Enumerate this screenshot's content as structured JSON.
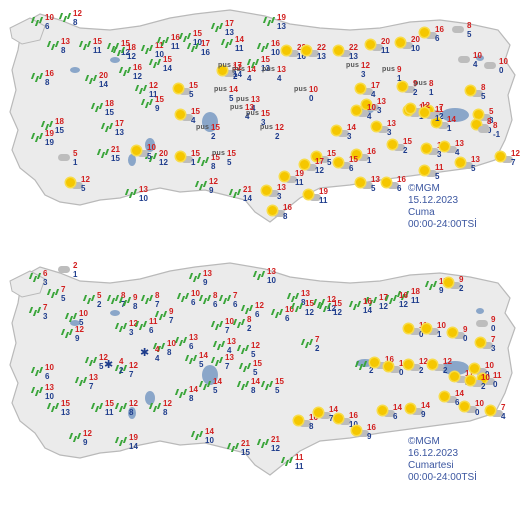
{
  "panels": [
    {
      "stamp": {
        "org": "©MGM",
        "date": "15.12.2023",
        "day": "Cuma",
        "hours": "00:00-24:00TSİ"
      }
    },
    {
      "stamp": {
        "org": "©MGM",
        "date": "16.12.2023",
        "day": "Cumartesi",
        "hours": "00:00-24:00TSİ"
      }
    }
  ],
  "legend": {
    "fog_label": "pus"
  },
  "colors": {
    "land": "#ebebeb",
    "coast": "#b9b9b9",
    "lake": "#8aa6c9",
    "high": "#d21e1e",
    "low": "#1e3c8c",
    "sun": "#f5c700",
    "rain": "#3aa53a"
  },
  "panel1": {
    "cities": [
      {
        "hi": "10",
        "lo": "6",
        "icon": "rain"
      },
      {
        "hi": "12",
        "lo": "8",
        "icon": "rain"
      },
      {
        "hi": "13",
        "lo": "8",
        "icon": "rain"
      },
      {
        "hi": "15",
        "lo": "11",
        "icon": "rain"
      },
      {
        "hi": "15",
        "lo": "12",
        "icon": "rain"
      },
      {
        "hi": "11",
        "lo": "10",
        "icon": "rain"
      },
      {
        "hi": "18",
        "lo": "12",
        "icon": "rain"
      },
      {
        "hi": "16",
        "lo": "11",
        "icon": "rain"
      },
      {
        "hi": "15",
        "lo": "10",
        "icon": "rain"
      },
      {
        "hi": "17",
        "lo": "13",
        "icon": "rain"
      },
      {
        "hi": "17",
        "lo": "16",
        "icon": "rain"
      },
      {
        "hi": "14",
        "lo": "11",
        "icon": "rain"
      },
      {
        "hi": "19",
        "lo": "13",
        "icon": "rain"
      },
      {
        "hi": "16",
        "lo": "10",
        "icon": "rain"
      },
      {
        "hi": "15",
        "lo": "13",
        "icon": "rain"
      },
      {
        "hi": "22",
        "lo": "16",
        "icon": "sun"
      },
      {
        "hi": "22",
        "lo": "13",
        "icon": "sun"
      },
      {
        "hi": "22",
        "lo": "13",
        "icon": "sun"
      },
      {
        "hi": "20",
        "lo": "11",
        "icon": "sun"
      },
      {
        "hi": "20",
        "lo": "10",
        "icon": "sun"
      },
      {
        "hi": "16",
        "lo": "6",
        "icon": "sun"
      },
      {
        "hi": "8",
        "lo": "5",
        "icon": "cloud"
      },
      {
        "hi": "10",
        "lo": "4",
        "icon": "cloud"
      },
      {
        "hi": "10",
        "lo": "0",
        "icon": "cloud"
      },
      {
        "hi": "16",
        "lo": "8",
        "icon": "rain"
      },
      {
        "hi": "20",
        "lo": "14",
        "icon": "rain"
      },
      {
        "hi": "18",
        "lo": "15",
        "icon": "rain"
      },
      {
        "hi": "16",
        "lo": "12",
        "icon": "rain"
      },
      {
        "hi": "15",
        "lo": "14",
        "icon": "rain"
      },
      {
        "hi": "12",
        "lo": "11",
        "icon": "rain"
      },
      {
        "hi": "19",
        "lo": "19",
        "icon": "rain"
      },
      {
        "hi": "15",
        "lo": "5",
        "icon": "sun"
      },
      {
        "hi": "12",
        "lo": "2",
        "icon": "sun"
      },
      {
        "hi": "15",
        "lo": "4",
        "icon": "sun"
      },
      {
        "hi": "17",
        "lo": "4",
        "icon": "sun"
      },
      {
        "hi": "13",
        "lo": "3",
        "icon": "sun"
      },
      {
        "hi": "9",
        "lo": "2",
        "icon": "sun"
      },
      {
        "hi": "12",
        "lo": "1",
        "icon": "sun"
      },
      {
        "hi": "7",
        "lo": "2",
        "icon": "sun"
      },
      {
        "hi": "8",
        "lo": "5",
        "icon": "sun"
      },
      {
        "hi": "5",
        "lo": "3",
        "icon": "sun"
      },
      {
        "hi": "18",
        "lo": "15",
        "icon": "rain"
      },
      {
        "hi": "17",
        "lo": "13",
        "icon": "rain"
      },
      {
        "hi": "15",
        "lo": "9",
        "icon": "rain"
      },
      {
        "hi": "14",
        "lo": "3",
        "icon": "sun"
      },
      {
        "hi": "13",
        "lo": "3",
        "icon": "sun"
      },
      {
        "hi": "14",
        "lo": "1",
        "icon": "sun"
      },
      {
        "hi": "10",
        "lo": "4",
        "icon": "sun"
      },
      {
        "hi": "12",
        "lo": "0",
        "icon": "sun"
      },
      {
        "hi": "11",
        "lo": "1",
        "icon": "sun"
      },
      {
        "hi": "8",
        "lo": "0",
        "icon": "sun"
      },
      {
        "hi": "8",
        "lo": "-1",
        "icon": "cloud"
      },
      {
        "hi": "5",
        "lo": "1",
        "icon": "cloud"
      },
      {
        "hi": "21",
        "lo": "15",
        "icon": "rain"
      },
      {
        "hi": "20",
        "lo": "12",
        "icon": "rain"
      },
      {
        "hi": "15",
        "lo": "8",
        "icon": "rain"
      },
      {
        "hi": "15",
        "lo": "1",
        "icon": "sun"
      },
      {
        "hi": "15",
        "lo": "5",
        "icon": "sun"
      },
      {
        "hi": "16",
        "lo": "1",
        "icon": "sun"
      },
      {
        "hi": "15",
        "lo": "2",
        "icon": "sun"
      },
      {
        "hi": "10",
        "lo": "3",
        "icon": "sun"
      },
      {
        "hi": "11",
        "lo": "5",
        "icon": "sun"
      },
      {
        "hi": "13",
        "lo": "4",
        "icon": "sun"
      },
      {
        "hi": "13",
        "lo": "5",
        "icon": "sun"
      },
      {
        "hi": "12",
        "lo": "7",
        "icon": "sun"
      },
      {
        "hi": "12",
        "lo": "5",
        "icon": "sun"
      },
      {
        "hi": "10",
        "lo": "5",
        "icon": "sun"
      },
      {
        "hi": "13",
        "lo": "10",
        "icon": "rain"
      },
      {
        "hi": "12",
        "lo": "9",
        "icon": "rain"
      },
      {
        "hi": "21",
        "lo": "14",
        "icon": "rain"
      },
      {
        "hi": "13",
        "lo": "3",
        "icon": "sun"
      },
      {
        "hi": "19",
        "lo": "11",
        "icon": "sun"
      },
      {
        "hi": "19",
        "lo": "11",
        "icon": "sun"
      },
      {
        "hi": "16",
        "lo": "8",
        "icon": "sun"
      },
      {
        "hi": "17",
        "lo": "12",
        "icon": "sun"
      },
      {
        "hi": "15",
        "lo": "6",
        "icon": "sun"
      },
      {
        "hi": "13",
        "lo": "5",
        "icon": "sun"
      },
      {
        "hi": "16",
        "lo": "6",
        "icon": "sun"
      },
      {
        "hi": "16",
        "lo": "9",
        "icon": "sun"
      }
    ],
    "fog": [
      {
        "hi": "17",
        "lo": "14"
      },
      {
        "hi": "14",
        "lo": "4"
      },
      {
        "hi": "13",
        "lo": "4"
      },
      {
        "hi": "13",
        "lo": "4"
      },
      {
        "hi": "12",
        "lo": "3"
      },
      {
        "hi": "9",
        "lo": "1"
      },
      {
        "hi": "8",
        "lo": "1"
      },
      {
        "hi": "14",
        "lo": "5"
      },
      {
        "hi": "10",
        "lo": "0"
      },
      {
        "hi": "13",
        "lo": "4"
      },
      {
        "hi": "15",
        "lo": "3"
      },
      {
        "hi": "12",
        "lo": "2"
      },
      {
        "hi": "15",
        "lo": "2"
      },
      {
        "hi": "15",
        "lo": "5"
      }
    ]
  },
  "panel2": {
    "cities": [
      {
        "hi": "6",
        "lo": "3",
        "icon": "rain"
      },
      {
        "hi": "2",
        "lo": "1",
        "icon": "cloud"
      },
      {
        "hi": "7",
        "lo": "5",
        "icon": "rain"
      },
      {
        "hi": "5",
        "lo": "2",
        "icon": "rain"
      },
      {
        "hi": "8",
        "lo": "7",
        "icon": "rain"
      },
      {
        "hi": "8",
        "lo": "7",
        "icon": "rain"
      },
      {
        "hi": "10",
        "lo": "6",
        "icon": "rain"
      },
      {
        "hi": "13",
        "lo": "9",
        "icon": "rain"
      },
      {
        "hi": "13",
        "lo": "10",
        "icon": "rain"
      },
      {
        "hi": "13",
        "lo": "8",
        "icon": "rain"
      },
      {
        "hi": "17",
        "lo": "12",
        "icon": "rain"
      },
      {
        "hi": "12",
        "lo": "12",
        "icon": "rain"
      },
      {
        "hi": "18",
        "lo": "11",
        "icon": "rain"
      },
      {
        "hi": "17",
        "lo": "9",
        "icon": "rain"
      },
      {
        "hi": "9",
        "lo": "2",
        "icon": "sun"
      },
      {
        "hi": "9",
        "lo": "0",
        "icon": "cloud"
      },
      {
        "hi": "7",
        "lo": "3",
        "icon": "rain"
      },
      {
        "hi": "10",
        "lo": "5",
        "icon": "rain"
      },
      {
        "hi": "9",
        "lo": "8",
        "icon": "rain"
      },
      {
        "hi": "9",
        "lo": "7",
        "icon": "rain"
      },
      {
        "hi": "8",
        "lo": "6",
        "icon": "rain"
      },
      {
        "hi": "7",
        "lo": "6",
        "icon": "rain"
      },
      {
        "hi": "12",
        "lo": "6",
        "icon": "rain"
      },
      {
        "hi": "10",
        "lo": "6",
        "icon": "rain"
      },
      {
        "hi": "15",
        "lo": "12",
        "icon": "rain"
      },
      {
        "hi": "15",
        "lo": "12",
        "icon": "rain"
      },
      {
        "hi": "16",
        "lo": "14",
        "icon": "rain"
      },
      {
        "hi": "16",
        "lo": "12",
        "icon": "rain"
      },
      {
        "hi": "11",
        "lo": "0",
        "icon": "sun"
      },
      {
        "hi": "10",
        "lo": "1",
        "icon": "sun"
      },
      {
        "hi": "9",
        "lo": "0",
        "icon": "sun"
      },
      {
        "hi": "7",
        "lo": "3",
        "icon": "sun"
      },
      {
        "hi": "12",
        "lo": "9",
        "icon": "rain"
      },
      {
        "hi": "10",
        "lo": "6",
        "icon": "rain"
      },
      {
        "hi": "12",
        "lo": "3",
        "icon": "rain"
      },
      {
        "hi": "11",
        "lo": "6",
        "icon": "rain"
      },
      {
        "hi": "10",
        "lo": "7",
        "icon": "rain"
      },
      {
        "hi": "8",
        "lo": "2",
        "icon": "rain"
      },
      {
        "hi": "7",
        "lo": "2",
        "icon": "rain"
      },
      {
        "hi": "13",
        "lo": "2",
        "icon": "rain"
      },
      {
        "hi": "12",
        "lo": "5",
        "icon": "rain"
      },
      {
        "hi": "13",
        "lo": "6",
        "icon": "rain"
      },
      {
        "hi": "13",
        "lo": "4",
        "icon": "rain"
      },
      {
        "hi": "12",
        "lo": "5",
        "icon": "rain"
      },
      {
        "hi": "13",
        "lo": "7",
        "icon": "rain"
      },
      {
        "hi": "12",
        "lo": "7",
        "icon": "rain"
      },
      {
        "hi": "10",
        "lo": "8",
        "icon": "rain"
      },
      {
        "hi": "14",
        "lo": "5",
        "icon": "rain"
      },
      {
        "hi": "13",
        "lo": "7",
        "icon": "rain"
      },
      {
        "hi": "15",
        "lo": "5",
        "icon": "rain"
      },
      {
        "hi": "16",
        "lo": "2",
        "icon": "sun"
      },
      {
        "hi": "12",
        "lo": "0",
        "icon": "sun"
      },
      {
        "hi": "12",
        "lo": "2",
        "icon": "sun"
      },
      {
        "hi": "12",
        "lo": "2",
        "icon": "sun"
      },
      {
        "hi": "11",
        "lo": "3",
        "icon": "sun"
      },
      {
        "hi": "10",
        "lo": "0",
        "icon": "sun"
      },
      {
        "hi": "11",
        "lo": "0",
        "icon": "sun"
      },
      {
        "hi": "13",
        "lo": "10",
        "icon": "rain"
      },
      {
        "hi": "15",
        "lo": "13",
        "icon": "rain"
      },
      {
        "hi": "15",
        "lo": "11",
        "icon": "rain"
      },
      {
        "hi": "12",
        "lo": "8",
        "icon": "rain"
      },
      {
        "hi": "12",
        "lo": "8",
        "icon": "rain"
      },
      {
        "hi": "14",
        "lo": "8",
        "icon": "rain"
      },
      {
        "hi": "14",
        "lo": "5",
        "icon": "rain"
      },
      {
        "hi": "14",
        "lo": "8",
        "icon": "rain"
      },
      {
        "hi": "15",
        "lo": "5",
        "icon": "rain"
      },
      {
        "hi": "12",
        "lo": "9",
        "icon": "rain"
      },
      {
        "hi": "19",
        "lo": "14",
        "icon": "rain"
      },
      {
        "hi": "14",
        "lo": "10",
        "icon": "rain"
      },
      {
        "hi": "21",
        "lo": "15",
        "icon": "rain"
      },
      {
        "hi": "21",
        "lo": "12",
        "icon": "rain"
      },
      {
        "hi": "11",
        "lo": "11",
        "icon": "rain"
      },
      {
        "hi": "16",
        "lo": "8",
        "icon": "sun"
      },
      {
        "hi": "14",
        "lo": "7",
        "icon": "sun"
      },
      {
        "hi": "16",
        "lo": "10",
        "icon": "sun"
      },
      {
        "hi": "16",
        "lo": "9",
        "icon": "sun"
      },
      {
        "hi": "14",
        "lo": "6",
        "icon": "sun"
      },
      {
        "hi": "14",
        "lo": "9",
        "icon": "sun"
      },
      {
        "hi": "14",
        "lo": "6",
        "icon": "sun"
      },
      {
        "hi": "10",
        "lo": "2",
        "icon": "sun"
      },
      {
        "hi": "10",
        "lo": "0",
        "icon": "sun"
      },
      {
        "hi": "7",
        "lo": "4",
        "icon": "sun"
      },
      {
        "hi": "10",
        "lo": "0",
        "icon": "sun"
      },
      {
        "hi": "9",
        "lo": "2",
        "icon": "sun"
      }
    ],
    "snow": [
      {
        "hi": "4",
        "lo": "2"
      },
      {
        "hi": "4",
        "lo": "4"
      }
    ]
  }
}
